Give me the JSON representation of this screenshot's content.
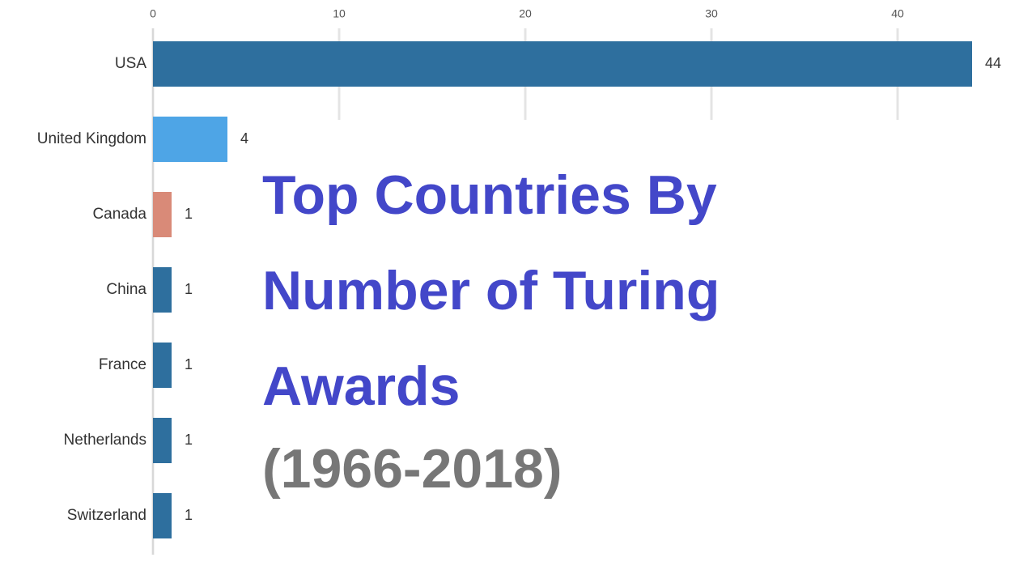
{
  "chart_data": {
    "type": "bar",
    "orientation": "horizontal",
    "title": "Top Countries By Number of Turing Awards",
    "subtitle": "(1966-2018)",
    "categories": [
      "USA",
      "United Kingdom",
      "Canada",
      "China",
      "France",
      "Netherlands",
      "Switzerland"
    ],
    "values": [
      44,
      4,
      1,
      1,
      1,
      1,
      1
    ],
    "colors": [
      "#2e6f9e",
      "#4ea5e6",
      "#d98a78",
      "#2e6f9e",
      "#2e6f9e",
      "#2e6f9e",
      "#2e6f9e"
    ],
    "xlim": [
      0,
      44
    ],
    "xticks": [
      0,
      10,
      20,
      30,
      40
    ],
    "grid": true
  }
}
